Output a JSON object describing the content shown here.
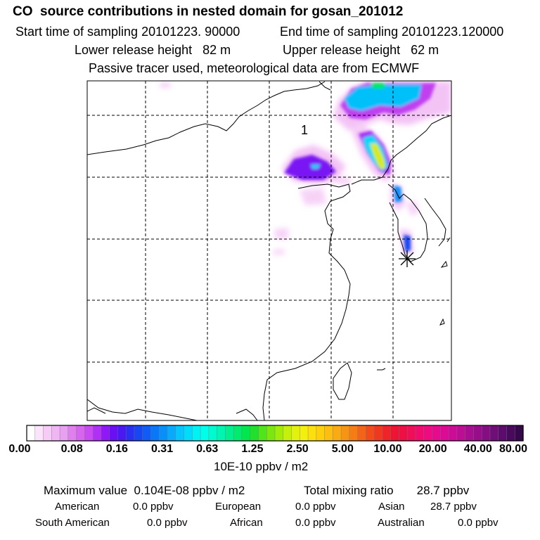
{
  "header": {
    "title": "CO  source contributions in nested domain for gosan_201012",
    "start_label": "Start time of sampling",
    "start_value": "20101223. 90000",
    "end_label": "End time of sampling",
    "end_value": "20101223.120000",
    "lower_label": "Lower release height",
    "lower_value": "82 m",
    "upper_label": "Upper release height",
    "upper_value": "62 m",
    "tracer_note": "Passive tracer used, meteorological data are from ECMWF"
  },
  "map": {
    "marker_label": "1",
    "receptor_symbol": "asterisk"
  },
  "colorbar": {
    "unit": "10E-10 ppbv / m2",
    "tick_labels": [
      "0.00",
      "0.08",
      "0.16",
      "0.31",
      "0.63",
      "1.25",
      "2.50",
      "5.00",
      "10.00",
      "20.00",
      "40.00",
      "80.00"
    ],
    "colors": [
      "#ffffff",
      "#fbe3fb",
      "#f6ccf7",
      "#f0b6f4",
      "#e8a0f0",
      "#e080ee",
      "#d766ee",
      "#c94cf2",
      "#b030f5",
      "#9018f6",
      "#6a10f4",
      "#4a18f2",
      "#2a30f0",
      "#1846f2",
      "#105cf4",
      "#0a76f8",
      "#0890fa",
      "#08aafc",
      "#06c4fc",
      "#02dcfa",
      "#00f2f4",
      "#00ffea",
      "#00fad0",
      "#00f6b0",
      "#00f090",
      "#00ec6e",
      "#00e84c",
      "#20e02c",
      "#50e41a",
      "#7ae80e",
      "#a2ec0a",
      "#c6f00a",
      "#e2f20c",
      "#f4f00e",
      "#fbe00e",
      "#fdd00e",
      "#fcbe10",
      "#faaa12",
      "#f89414",
      "#f67c16",
      "#f46418",
      "#f24c1c",
      "#f03820",
      "#ef2428",
      "#ee1434",
      "#ee1044",
      "#ef0e58",
      "#f00c6e",
      "#ee0a80",
      "#e60a8c",
      "#dc0a94",
      "#cc0c96",
      "#bc0e94",
      "#aa0e90",
      "#980e8a",
      "#840e82",
      "#700e78",
      "#5c0c6c",
      "#480a5c",
      "#34084a"
    ]
  },
  "stats": {
    "max_label": "Maximum value",
    "max_value": "0.104E-08 ppbv / m2",
    "total_label": "Total mixing ratio",
    "total_value": "28.7 ppbv",
    "regions": [
      {
        "name": "American",
        "value": "0.0 ppbv"
      },
      {
        "name": "European",
        "value": "0.0 ppbv"
      },
      {
        "name": "Asian",
        "value": "28.7 ppbv"
      },
      {
        "name": "South American",
        "value": "0.0 ppbv"
      },
      {
        "name": "African",
        "value": "0.0 ppbv"
      },
      {
        "name": "Australian",
        "value": "0.0 ppbv"
      }
    ]
  }
}
